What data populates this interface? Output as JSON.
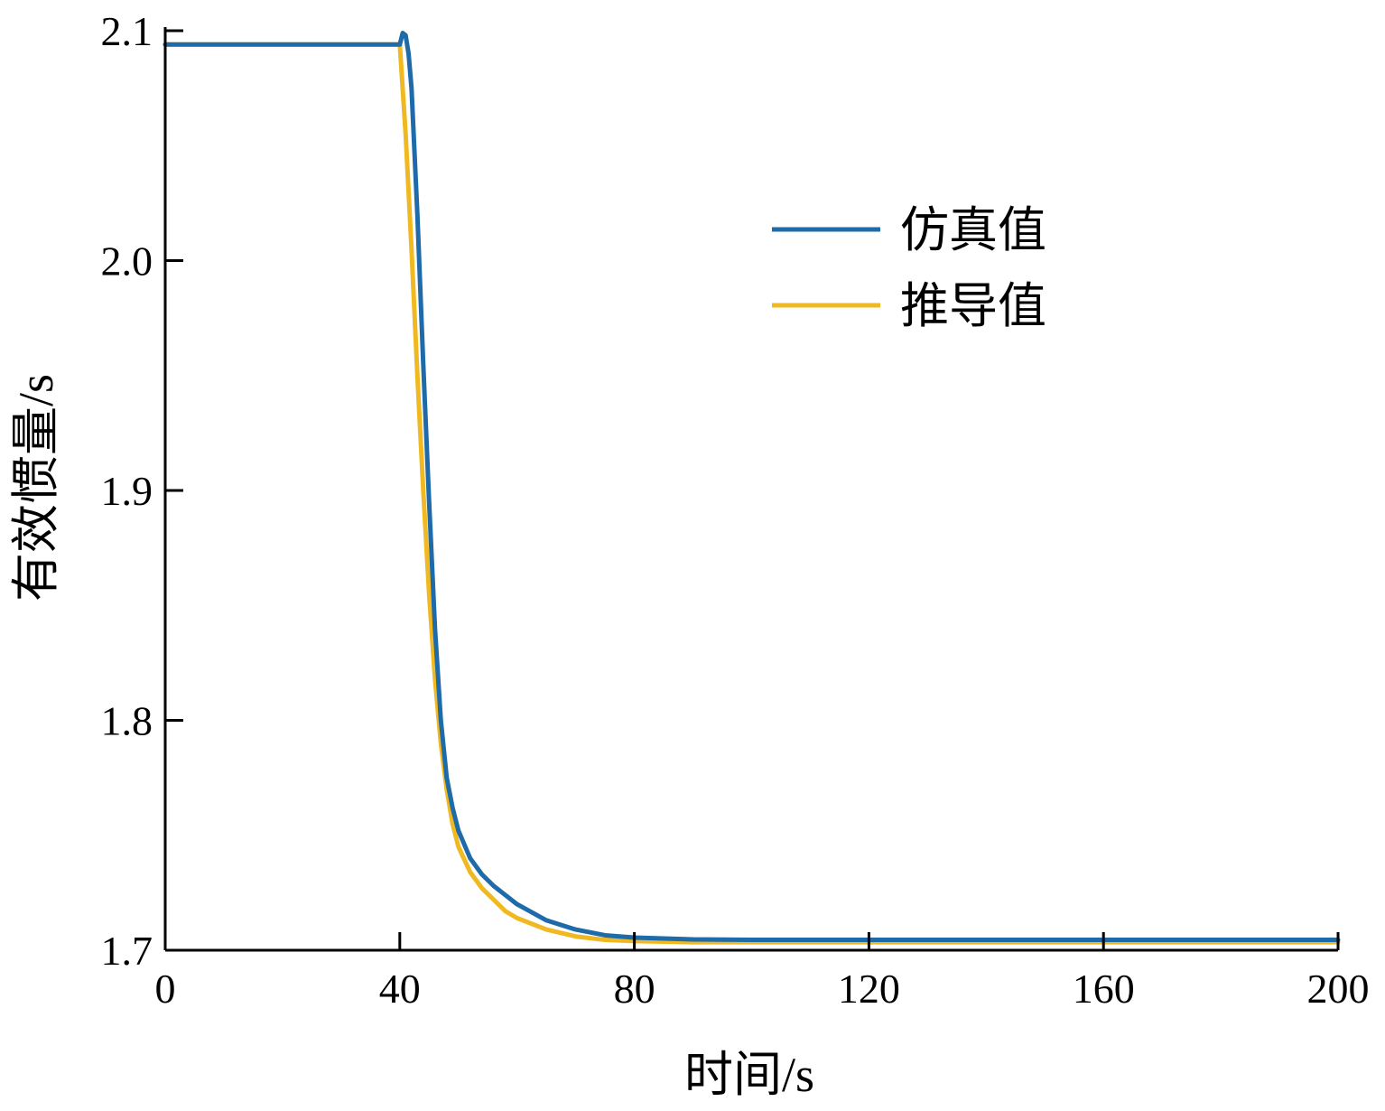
{
  "chart_data": {
    "type": "line",
    "title": "",
    "xlabel": "时间/s",
    "ylabel": "有效惯量/s",
    "xlim": [
      0,
      200
    ],
    "ylim": [
      1.7,
      2.1
    ],
    "xticks": [
      0,
      40,
      80,
      120,
      160,
      200
    ],
    "xtick_labels": [
      "0",
      "40",
      "80",
      "120",
      "160",
      "200"
    ],
    "yticks": [
      1.7,
      1.8,
      1.9,
      2.0,
      2.1
    ],
    "ytick_labels": [
      "1.7",
      "1.8",
      "1.9",
      "2.0",
      "2.1"
    ],
    "grid": false,
    "legend_position": "top-right",
    "series": [
      {
        "name": "仿真值",
        "color": "#1f6aa8",
        "x": [
          0,
          40,
          40.5,
          41,
          41.5,
          42,
          43,
          44,
          45,
          46,
          47,
          48,
          49,
          50,
          52,
          54,
          56,
          58,
          60,
          65,
          70,
          75,
          80,
          90,
          100,
          120,
          140,
          160,
          180,
          200
        ],
        "y": [
          2.094,
          2.094,
          2.099,
          2.098,
          2.09,
          2.075,
          2.02,
          1.955,
          1.895,
          1.84,
          1.8,
          1.775,
          1.762,
          1.752,
          1.74,
          1.733,
          1.728,
          1.724,
          1.72,
          1.713,
          1.709,
          1.7065,
          1.7055,
          1.7047,
          1.7045,
          1.7045,
          1.7045,
          1.7045,
          1.7045,
          1.7045
        ]
      },
      {
        "name": "推导值",
        "color": "#f0b921",
        "x": [
          0,
          40,
          41,
          42,
          43,
          44,
          45,
          46,
          47,
          48,
          49,
          50,
          52,
          54,
          56,
          58,
          60,
          65,
          70,
          75,
          80,
          90,
          100,
          120,
          140,
          160,
          180,
          200
        ],
        "y": [
          2.094,
          2.094,
          2.055,
          2.005,
          1.95,
          1.9,
          1.855,
          1.818,
          1.79,
          1.77,
          1.755,
          1.745,
          1.734,
          1.727,
          1.722,
          1.717,
          1.714,
          1.709,
          1.706,
          1.7045,
          1.704,
          1.7035,
          1.7035,
          1.7035,
          1.7035,
          1.7035,
          1.7035,
          1.7035
        ]
      }
    ]
  }
}
